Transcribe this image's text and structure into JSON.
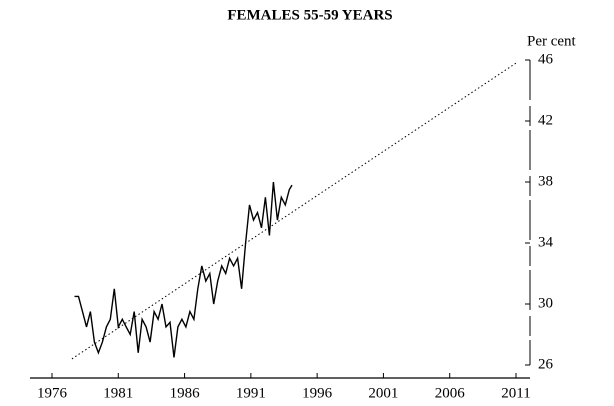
{
  "chart_data": {
    "type": "line",
    "title": "FEMALES 55-59 YEARS",
    "y_label": "Per cent",
    "xlim": [
      1976,
      2011
    ],
    "xticks": [
      1976,
      1981,
      1986,
      1991,
      1996,
      2001,
      2006,
      2011
    ],
    "ylim": [
      26,
      46
    ],
    "yticks": [
      26,
      30,
      34,
      38,
      42,
      46
    ],
    "y_axis_side": "right",
    "grid": false,
    "series": [
      {
        "color": "#000000",
        "style": "solid",
        "x": [
          1977.7,
          1978.0,
          1978.3,
          1978.6,
          1978.9,
          1979.2,
          1979.5,
          1979.8,
          1980.1,
          1980.4,
          1980.7,
          1981.0,
          1981.3,
          1981.6,
          1981.9,
          1982.2,
          1982.5,
          1982.8,
          1983.1,
          1983.4,
          1983.7,
          1984.0,
          1984.3,
          1984.6,
          1984.9,
          1985.2,
          1985.5,
          1985.8,
          1986.1,
          1986.4,
          1986.7,
          1987.0,
          1987.3,
          1987.6,
          1987.9,
          1988.2,
          1988.5,
          1988.8,
          1989.1,
          1989.4,
          1989.7,
          1990.0,
          1990.3,
          1990.6,
          1990.9,
          1991.2,
          1991.5,
          1991.8,
          1992.1,
          1992.4,
          1992.7,
          1993.0,
          1993.3,
          1993.6,
          1993.9,
          1994.1
        ],
        "values": [
          30.5,
          30.5,
          29.5,
          28.5,
          29.5,
          27.5,
          26.8,
          27.5,
          28.5,
          29,
          31,
          28.5,
          29,
          28.5,
          28,
          29.5,
          26.8,
          29,
          28.5,
          27.5,
          29.5,
          29,
          30,
          28.5,
          28.8,
          26.5,
          28.5,
          29,
          28.5,
          29.5,
          29,
          31,
          32.5,
          31.5,
          32,
          30,
          31.5,
          32.5,
          32,
          33,
          32.5,
          33,
          31,
          34,
          36.5,
          35.5,
          36,
          35,
          37,
          34.5,
          38,
          35.5,
          37,
          36.5,
          37.5,
          37.8
        ]
      },
      {
        "color": "#000000",
        "style": "dotted",
        "x": [
          1977.5,
          2011
        ],
        "values": [
          26.4,
          45.8
        ]
      }
    ]
  }
}
